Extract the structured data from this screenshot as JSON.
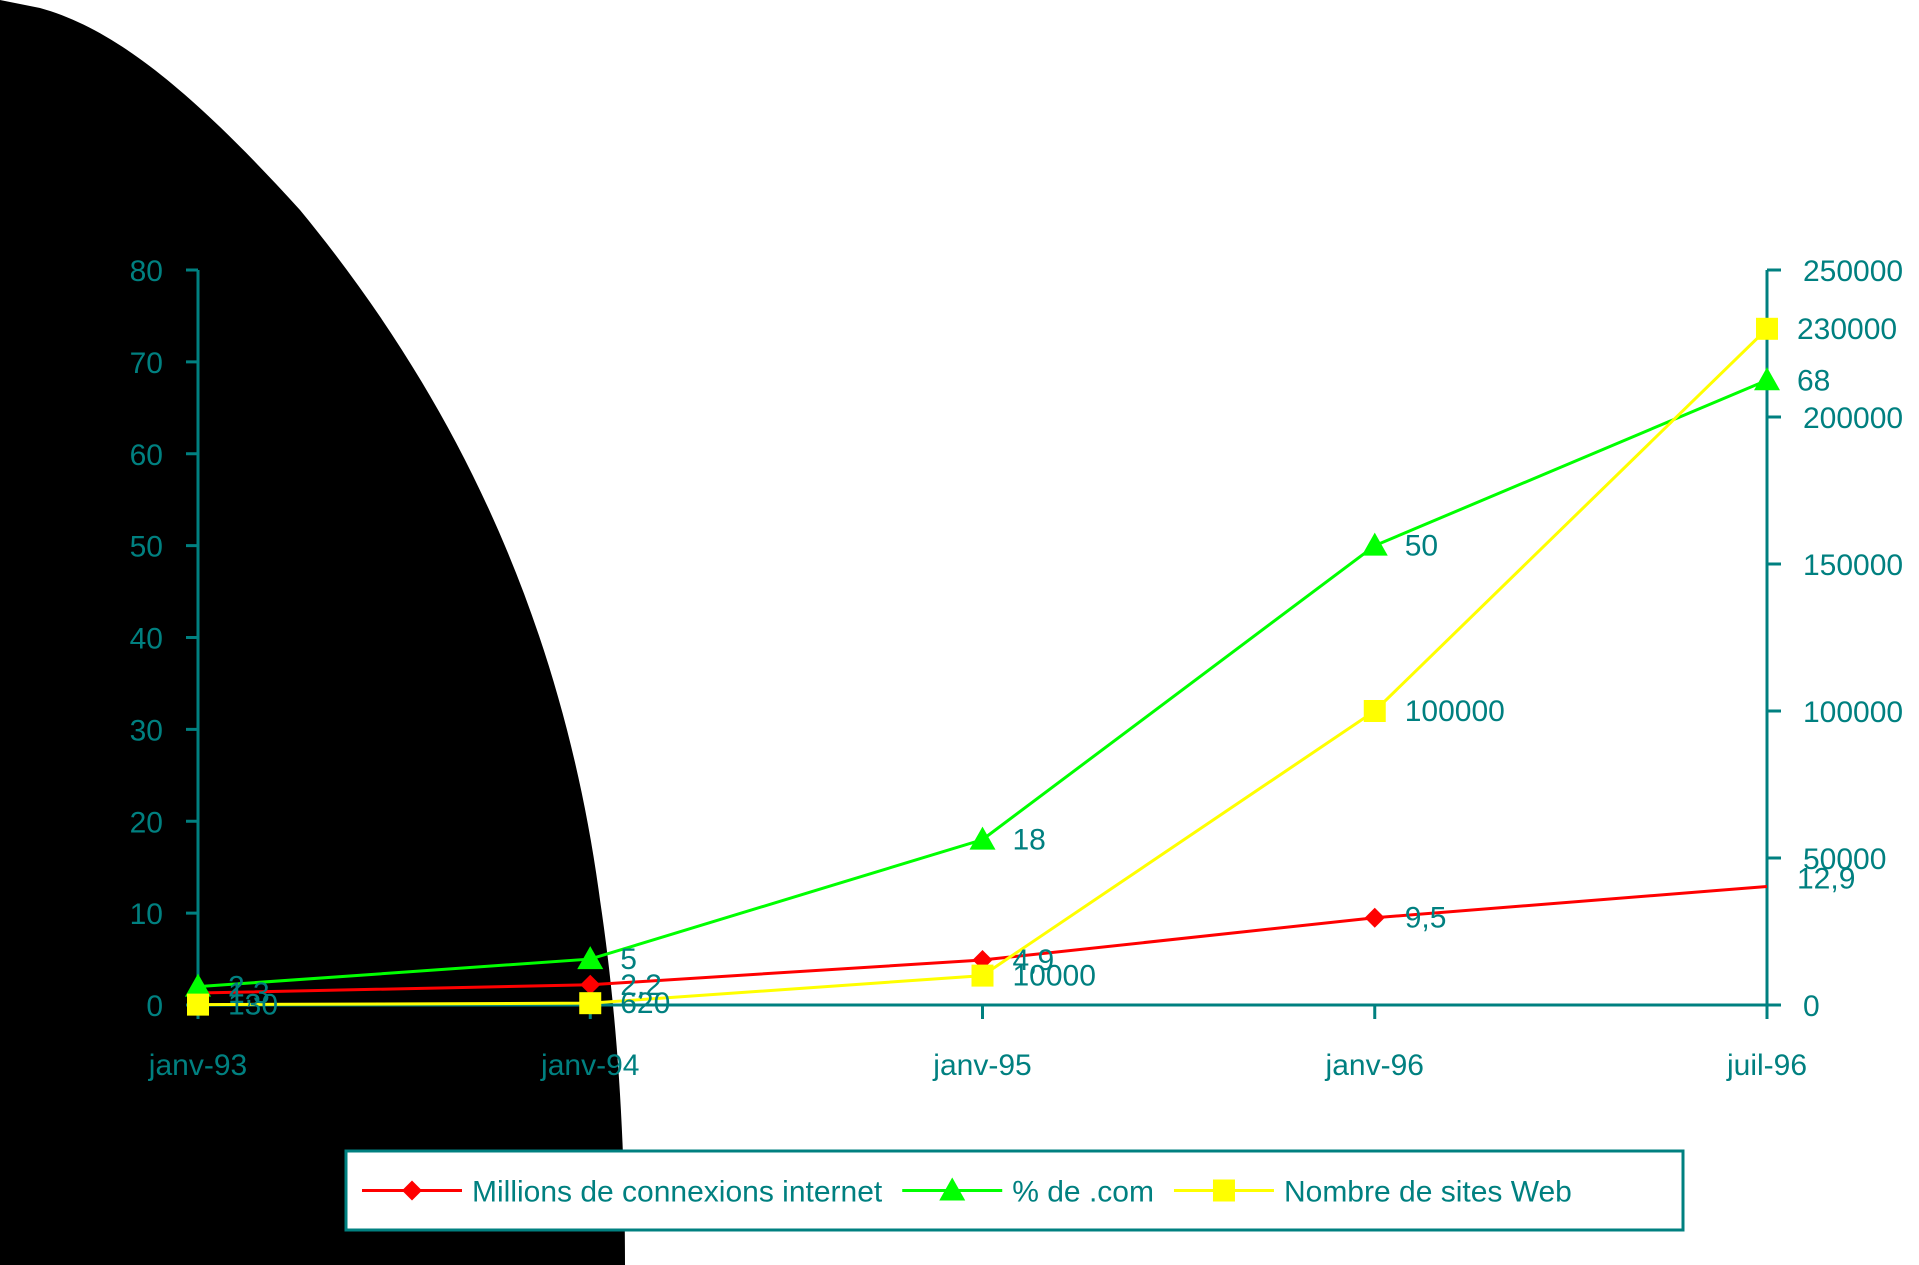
{
  "chart_data": {
    "type": "line",
    "categories": [
      "janv-93",
      "janv-94",
      "janv-95",
      "janv-96",
      "juil-96"
    ],
    "y_left": {
      "ticks": [
        "0",
        "10",
        "20",
        "30",
        "40",
        "50",
        "60",
        "70",
        "80"
      ],
      "ylim": [
        0,
        80
      ]
    },
    "y_right": {
      "ticks": [
        "0",
        "50000",
        "100000",
        "150000",
        "200000",
        "250000"
      ],
      "ylim": [
        0,
        250000
      ]
    },
    "series": [
      {
        "name": "Millions de connexions internet",
        "axis": "left",
        "color": "#ff0000",
        "marker": "diamond",
        "values": [
          1.3,
          2.2,
          4.9,
          9.5,
          12.9
        ],
        "labels": [
          "1,3",
          "2,2",
          "4,9",
          "9,5",
          "12,9"
        ]
      },
      {
        "name": "% de .com",
        "axis": "left",
        "color": "#00ff00",
        "marker": "triangle",
        "values": [
          2,
          5,
          18,
          50,
          68
        ],
        "labels": [
          "2",
          "5",
          "18",
          "50",
          "68"
        ]
      },
      {
        "name": "Nombre de sites Web",
        "axis": "right",
        "color": "#ffff00",
        "marker": "square",
        "values": [
          130,
          620,
          10000,
          100000,
          230000
        ],
        "labels": [
          "130",
          "620",
          "10000",
          "100000",
          "230000"
        ]
      }
    ],
    "legend": {
      "placement": "bottom"
    },
    "axis_color": "#008080",
    "grid": false
  }
}
